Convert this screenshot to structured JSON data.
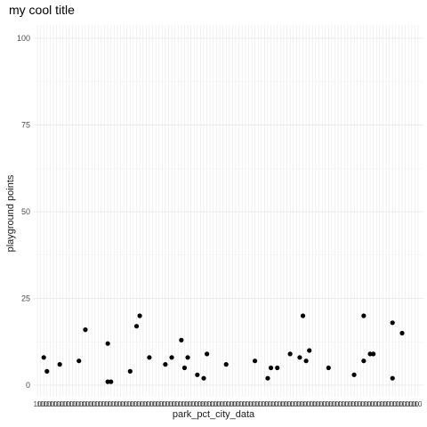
{
  "chart_data": {
    "type": "scatter",
    "title": "my cool title",
    "xlabel": "park_pct_city_data",
    "ylabel": "playground points",
    "ylim": [
      0,
      100
    ],
    "yticks": [
      0,
      25,
      50,
      75,
      100
    ],
    "x_category_count": 120,
    "x_tick_label_sample": "10",
    "grid": true,
    "legend": false,
    "point_color": "#000000",
    "panel_background": "#ffffff",
    "grid_color_major": "#ebebeb",
    "points": [
      {
        "x": 3,
        "y": 8
      },
      {
        "x": 4,
        "y": 4
      },
      {
        "x": 8,
        "y": 6
      },
      {
        "x": 14,
        "y": 7
      },
      {
        "x": 16,
        "y": 16
      },
      {
        "x": 23,
        "y": 12
      },
      {
        "x": 23,
        "y": 1
      },
      {
        "x": 24,
        "y": 1
      },
      {
        "x": 30,
        "y": 4
      },
      {
        "x": 32,
        "y": 17
      },
      {
        "x": 33,
        "y": 20
      },
      {
        "x": 36,
        "y": 8
      },
      {
        "x": 41,
        "y": 6
      },
      {
        "x": 43,
        "y": 8
      },
      {
        "x": 46,
        "y": 13
      },
      {
        "x": 47,
        "y": 5
      },
      {
        "x": 48,
        "y": 8
      },
      {
        "x": 51,
        "y": 3
      },
      {
        "x": 53,
        "y": 2
      },
      {
        "x": 54,
        "y": 9
      },
      {
        "x": 60,
        "y": 6
      },
      {
        "x": 69,
        "y": 7
      },
      {
        "x": 73,
        "y": 2
      },
      {
        "x": 74,
        "y": 5
      },
      {
        "x": 76,
        "y": 5
      },
      {
        "x": 80,
        "y": 9
      },
      {
        "x": 83,
        "y": 8
      },
      {
        "x": 84,
        "y": 20
      },
      {
        "x": 85,
        "y": 7
      },
      {
        "x": 86,
        "y": 10
      },
      {
        "x": 92,
        "y": 5
      },
      {
        "x": 100,
        "y": 3
      },
      {
        "x": 103,
        "y": 20
      },
      {
        "x": 103,
        "y": 7
      },
      {
        "x": 105,
        "y": 9
      },
      {
        "x": 106,
        "y": 9
      },
      {
        "x": 112,
        "y": 18
      },
      {
        "x": 112,
        "y": 2
      },
      {
        "x": 115,
        "y": 15
      }
    ]
  }
}
